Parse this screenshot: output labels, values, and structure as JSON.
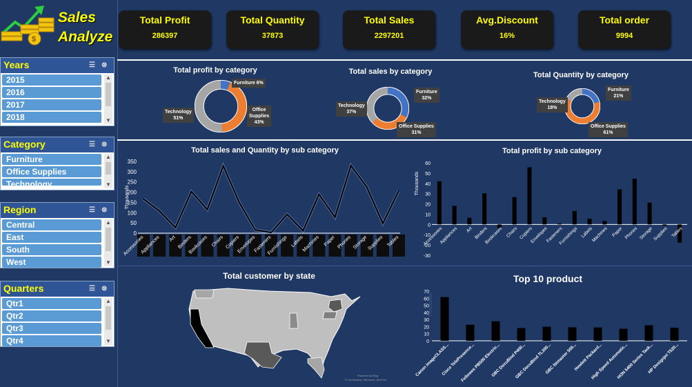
{
  "logo": {
    "line1": "Sales",
    "line2": "Analyze"
  },
  "kpis": [
    {
      "title": "Total Profit",
      "value": "286397"
    },
    {
      "title": "Total Quantity",
      "value": "37873"
    },
    {
      "title": "Total Sales",
      "value": "2297201"
    },
    {
      "title": "Avg.Discount",
      "value": "16%"
    },
    {
      "title": "Total order",
      "value": "9994"
    }
  ],
  "slicers": {
    "years": {
      "title": "Years",
      "items": [
        "2015",
        "2016",
        "2017",
        "2018"
      ]
    },
    "category": {
      "title": "Category",
      "items": [
        "Furniture",
        "Office Supplies",
        "Technology"
      ]
    },
    "region": {
      "title": "Region",
      "items": [
        "Central",
        "East",
        "South",
        "West"
      ]
    },
    "quarters": {
      "title": "Quarters",
      "items": [
        "Qtr1",
        "Qtr2",
        "Qtr3",
        "Qtr4"
      ]
    }
  },
  "colors": {
    "bg": "#1f3864",
    "technology": "#a6a6a6",
    "furniture": "#4472c4",
    "office": "#ed7d31",
    "kpi_text": "#ffff00"
  },
  "chart_data": [
    {
      "type": "pie",
      "title": "Total profit by category",
      "labels": [
        "Furniture",
        "Office Supplies",
        "Technology"
      ],
      "values": [
        6,
        43,
        51
      ],
      "display": [
        "Furniture\n6%",
        "Office\nSupplies\n43%",
        "Technology\n51%"
      ]
    },
    {
      "type": "pie",
      "title": "Total sales by category",
      "labels": [
        "Furniture",
        "Office Supplies",
        "Technology"
      ],
      "values": [
        32,
        31,
        37
      ],
      "display": [
        "Furniture\n32%",
        "Office Supplies\n31%",
        "Technology\n37%"
      ]
    },
    {
      "type": "pie",
      "title": "Total Quantity by category",
      "labels": [
        "Furniture",
        "Office Supplies",
        "Technology"
      ],
      "values": [
        21,
        61,
        18
      ],
      "display": [
        "Furniture\n21%",
        "Office Supplies\n61%",
        "Technology\n18%"
      ]
    },
    {
      "type": "line",
      "title": "Total sales and Quantity by sub category",
      "ylabel": "Thousands",
      "ylim": [
        0,
        350
      ],
      "yticks": [
        "0",
        "50",
        "100",
        "150",
        "200",
        "250",
        "300",
        "350"
      ],
      "categories": [
        "Accessories",
        "Appliances",
        "Art",
        "Binders",
        "Bookcases",
        "Chairs",
        "Copiers",
        "Envelopes",
        "Fasteners",
        "Furnishings",
        "Labels",
        "Machines",
        "Paper",
        "Phones",
        "Storage",
        "Supplies",
        "Tables"
      ],
      "series": [
        {
          "values": [
            167,
            108,
            27,
            203,
            115,
            328,
            150,
            16,
            3,
            92,
            12,
            189,
            78,
            330,
            224,
            47,
            207
          ]
        }
      ]
    },
    {
      "type": "bar",
      "title": "Total profit by sub category",
      "ylabel": "Thousands",
      "ylim": [
        -30,
        60
      ],
      "yticks": [
        "-30",
        "-20",
        "-10",
        "0",
        "10",
        "20",
        "30",
        "40",
        "50",
        "60"
      ],
      "categories": [
        "Accessories",
        "Appliances",
        "Art",
        "Binders",
        "Bookcases",
        "Chairs",
        "Copiers",
        "Envelopes",
        "Fasteners",
        "Furnishings",
        "Labels",
        "Machines",
        "Paper",
        "Phones",
        "Storage",
        "Supplies",
        "Tables"
      ],
      "values": [
        41.9,
        18.1,
        6.5,
        30.2,
        -3.5,
        26.6,
        55.6,
        6.9,
        0.9,
        13.1,
        5.5,
        3.4,
        34.1,
        44.5,
        21.3,
        -1.2,
        -17.7
      ]
    },
    {
      "type": "bar",
      "title": "Top 10 product",
      "ylabel": "Thousands",
      "ylim": [
        0,
        70
      ],
      "yticks": [
        "0",
        "10",
        "20",
        "30",
        "40",
        "50",
        "60",
        "70"
      ],
      "categories": [
        "Canon imageCLASS...",
        "Cisco TelePresence...",
        "Fellowes PB500 Electric...",
        "GBC DocuBind P400...",
        "GBC DocuBind TL300...",
        "GBC Ibimaster 500...",
        "Hewlett Packard...",
        "High Speed Automatic...",
        "HON 5400 Series Task...",
        "HP Designjet T520..."
      ],
      "values": [
        61.6,
        22.6,
        27.5,
        17.9,
        19.8,
        19.0,
        18.8,
        17.0,
        21.9,
        18.4
      ]
    },
    {
      "type": "map",
      "title": "Total customer by state",
      "credit": [
        "Powered by Bing",
        "© GeoNames, Microsoft, TomTom"
      ]
    }
  ]
}
